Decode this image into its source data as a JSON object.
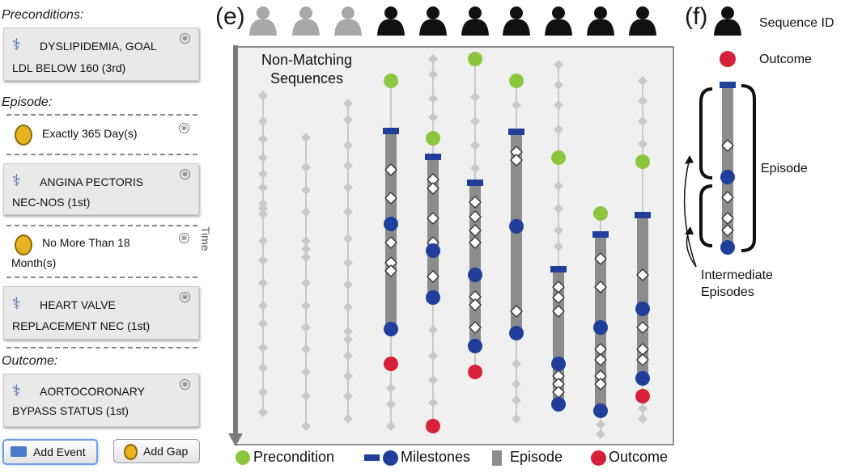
{
  "panel": {
    "preconditions_title": "Preconditions:",
    "episode_title": "Episode:",
    "outcome_title": "Outcome:",
    "cards": {
      "dyslipidemia_l1": "DYSLIPIDEMIA, GOAL",
      "dyslipidemia_l2": "LDL BELOW 160 (3rd)",
      "exactly": "Exactly 365 Day(s)",
      "angina_l1": "ANGINA PECTORIS",
      "angina_l2": "NEC-NOS (1st)",
      "nomore_l1": "No More Than 18",
      "nomore_l2": "Month(s)",
      "heart_l1": "HEART VALVE",
      "heart_l2": "REPLACEMENT NEC (1st)",
      "aorto_l1": "AORTOCORONARY",
      "aorto_l2": "BYPASS STATUS (1st)"
    },
    "remove_glyph": "⊗",
    "add_event_label": "Add Event",
    "add_gap_label": "Add Gap"
  },
  "figure": {
    "label_e": "(e)",
    "label_f": "(f)",
    "time_label": "Time",
    "non_matching_l1": "Non-Matching",
    "non_matching_l2": "Sequences",
    "legend": {
      "precondition": "Precondition",
      "milestones": "Milestones",
      "episode": "Episode",
      "outcome": "Outcome"
    },
    "key": {
      "sequence_id": "Sequence ID",
      "outcome": "Outcome",
      "episode": "Episode",
      "intermediate_l1": "Intermediate",
      "intermediate_l2": "Episodes"
    },
    "colors": {
      "precondition": "#8cc63f",
      "milestone": "#1f3f9a",
      "episode_bar": "#8c8c8c",
      "outcome": "#d7213a",
      "nonmatch": "#c9c9c9",
      "person_active": "#111111",
      "person_inactive": "#a8a8a8"
    }
  }
}
